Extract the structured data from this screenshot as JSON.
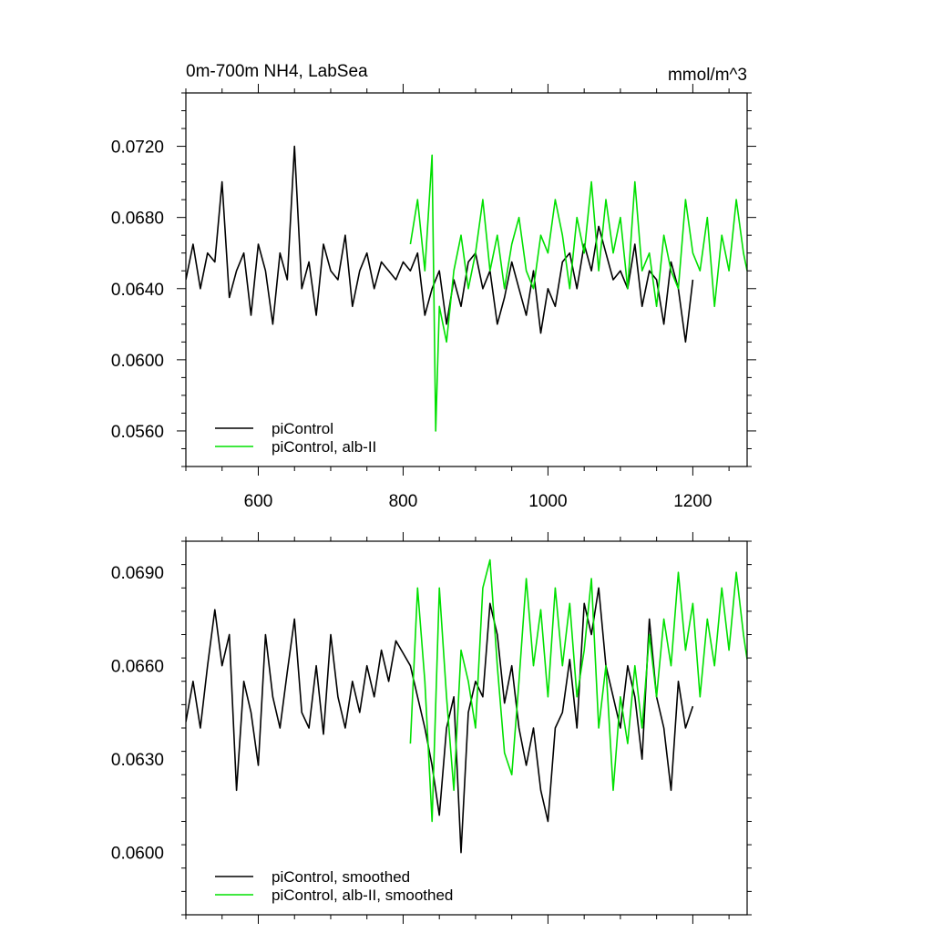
{
  "chart_data": [
    {
      "type": "line",
      "title": "0m-700m NH4, LabSea",
      "units": "mmol/m^3",
      "xlabel": "",
      "ylabel": "",
      "xlim": [
        500,
        1275
      ],
      "ylim": [
        0.054,
        0.075
      ],
      "x_ticks": [
        600,
        800,
        1000,
        1200
      ],
      "x_tick_labels": [
        "600",
        "800",
        "1000",
        "1200"
      ],
      "y_ticks": [
        0.056,
        0.06,
        0.064,
        0.068,
        0.072
      ],
      "y_tick_labels": [
        "0.0560",
        "0.0600",
        "0.0640",
        "0.0680",
        "0.0720"
      ],
      "grid": false,
      "legend_position": "bottom-left",
      "series": [
        {
          "name": "piControl",
          "color": "#000000",
          "x": [
            500,
            510,
            520,
            530,
            540,
            550,
            560,
            570,
            580,
            590,
            600,
            610,
            620,
            630,
            640,
            650,
            660,
            670,
            680,
            690,
            700,
            710,
            720,
            730,
            740,
            750,
            760,
            770,
            780,
            790,
            800,
            810,
            820,
            830,
            840,
            850,
            860,
            870,
            880,
            890,
            900,
            910,
            920,
            930,
            940,
            950,
            960,
            970,
            980,
            990,
            1000,
            1010,
            1020,
            1030,
            1040,
            1050,
            1060,
            1070,
            1080,
            1090,
            1100,
            1110,
            1120,
            1130,
            1140,
            1150,
            1160,
            1170,
            1180,
            1190,
            1200
          ],
          "values": [
            0.0645,
            0.0665,
            0.064,
            0.066,
            0.0655,
            0.07,
            0.0635,
            0.065,
            0.066,
            0.0625,
            0.0665,
            0.065,
            0.062,
            0.066,
            0.0645,
            0.072,
            0.064,
            0.0655,
            0.0625,
            0.0665,
            0.065,
            0.0645,
            0.067,
            0.063,
            0.065,
            0.066,
            0.064,
            0.0655,
            0.065,
            0.0645,
            0.0655,
            0.065,
            0.066,
            0.0625,
            0.064,
            0.065,
            0.062,
            0.0645,
            0.063,
            0.0655,
            0.066,
            0.064,
            0.065,
            0.062,
            0.0635,
            0.0655,
            0.064,
            0.0625,
            0.065,
            0.0615,
            0.064,
            0.063,
            0.0655,
            0.066,
            0.064,
            0.0665,
            0.065,
            0.0675,
            0.066,
            0.0645,
            0.065,
            0.064,
            0.0665,
            0.063,
            0.065,
            0.0645,
            0.062,
            0.0655,
            0.064,
            0.061,
            0.0645
          ]
        },
        {
          "name": "piControl, alb-II",
          "color": "#00e000",
          "x": [
            810,
            820,
            830,
            840,
            845,
            850,
            860,
            870,
            880,
            890,
            900,
            910,
            920,
            930,
            940,
            950,
            960,
            970,
            980,
            990,
            1000,
            1010,
            1020,
            1030,
            1040,
            1050,
            1060,
            1070,
            1080,
            1090,
            1100,
            1110,
            1120,
            1130,
            1140,
            1150,
            1160,
            1170,
            1180,
            1190,
            1200,
            1210,
            1220,
            1230,
            1240,
            1250,
            1260,
            1270,
            1275
          ],
          "values": [
            0.0665,
            0.069,
            0.065,
            0.0715,
            0.056,
            0.063,
            0.061,
            0.065,
            0.067,
            0.064,
            0.066,
            0.069,
            0.065,
            0.067,
            0.064,
            0.0665,
            0.068,
            0.065,
            0.064,
            0.067,
            0.066,
            0.069,
            0.067,
            0.064,
            0.068,
            0.066,
            0.07,
            0.065,
            0.069,
            0.066,
            0.068,
            0.064,
            0.07,
            0.065,
            0.066,
            0.063,
            0.067,
            0.065,
            0.064,
            0.069,
            0.066,
            0.065,
            0.068,
            0.063,
            0.067,
            0.065,
            0.069,
            0.066,
            0.065
          ]
        }
      ]
    },
    {
      "type": "line",
      "title": "",
      "xlabel": "",
      "ylabel": "",
      "xlim": [
        500,
        1275
      ],
      "ylim": [
        0.058,
        0.07
      ],
      "x_ticks": [
        600,
        800,
        1000,
        1200
      ],
      "x_tick_labels": [],
      "y_ticks": [
        0.06,
        0.063,
        0.066,
        0.069
      ],
      "y_tick_labels": [
        "0.0600",
        "0.0630",
        "0.0660",
        "0.0690"
      ],
      "grid": false,
      "legend_position": "bottom-left",
      "series": [
        {
          "name": "piControl, smoothed",
          "color": "#000000",
          "x": [
            500,
            510,
            520,
            530,
            540,
            550,
            560,
            570,
            580,
            590,
            600,
            610,
            620,
            630,
            640,
            650,
            660,
            670,
            680,
            690,
            700,
            710,
            720,
            730,
            740,
            750,
            760,
            770,
            780,
            790,
            800,
            810,
            820,
            830,
            840,
            850,
            860,
            870,
            880,
            890,
            900,
            910,
            920,
            930,
            940,
            950,
            960,
            970,
            980,
            990,
            1000,
            1010,
            1020,
            1030,
            1040,
            1050,
            1060,
            1070,
            1080,
            1090,
            1100,
            1110,
            1120,
            1130,
            1140,
            1150,
            1160,
            1170,
            1180,
            1190,
            1200
          ],
          "values": [
            0.0642,
            0.0655,
            0.064,
            0.066,
            0.0678,
            0.066,
            0.067,
            0.062,
            0.0655,
            0.0645,
            0.0628,
            0.067,
            0.065,
            0.064,
            0.0658,
            0.0675,
            0.0645,
            0.064,
            0.066,
            0.0638,
            0.067,
            0.065,
            0.064,
            0.0655,
            0.0645,
            0.066,
            0.065,
            0.0665,
            0.0655,
            0.0668,
            0.0664,
            0.066,
            0.065,
            0.064,
            0.0628,
            0.0612,
            0.064,
            0.065,
            0.06,
            0.0645,
            0.0655,
            0.065,
            0.068,
            0.067,
            0.0648,
            0.066,
            0.064,
            0.0628,
            0.064,
            0.062,
            0.061,
            0.064,
            0.0645,
            0.0662,
            0.064,
            0.068,
            0.067,
            0.0685,
            0.066,
            0.065,
            0.064,
            0.066,
            0.065,
            0.063,
            0.0675,
            0.065,
            0.064,
            0.062,
            0.0655,
            0.064,
            0.0647
          ]
        },
        {
          "name": "piControl, alb-II, smoothed",
          "color": "#00e000",
          "x": [
            810,
            820,
            830,
            840,
            850,
            860,
            870,
            880,
            890,
            900,
            910,
            920,
            930,
            940,
            950,
            960,
            970,
            980,
            990,
            1000,
            1010,
            1020,
            1030,
            1040,
            1050,
            1060,
            1070,
            1080,
            1090,
            1100,
            1110,
            1120,
            1130,
            1140,
            1150,
            1160,
            1170,
            1180,
            1190,
            1200,
            1210,
            1220,
            1230,
            1240,
            1250,
            1260,
            1270,
            1275
          ],
          "values": [
            0.0635,
            0.0685,
            0.0655,
            0.061,
            0.0685,
            0.065,
            0.062,
            0.0665,
            0.0655,
            0.064,
            0.0685,
            0.0694,
            0.066,
            0.0632,
            0.0625,
            0.0655,
            0.0688,
            0.066,
            0.0678,
            0.065,
            0.0685,
            0.066,
            0.068,
            0.065,
            0.0665,
            0.0688,
            0.064,
            0.066,
            0.062,
            0.065,
            0.0635,
            0.066,
            0.064,
            0.067,
            0.065,
            0.0675,
            0.066,
            0.069,
            0.0665,
            0.068,
            0.065,
            0.0675,
            0.066,
            0.0685,
            0.0665,
            0.069,
            0.067,
            0.0662
          ]
        }
      ]
    }
  ]
}
